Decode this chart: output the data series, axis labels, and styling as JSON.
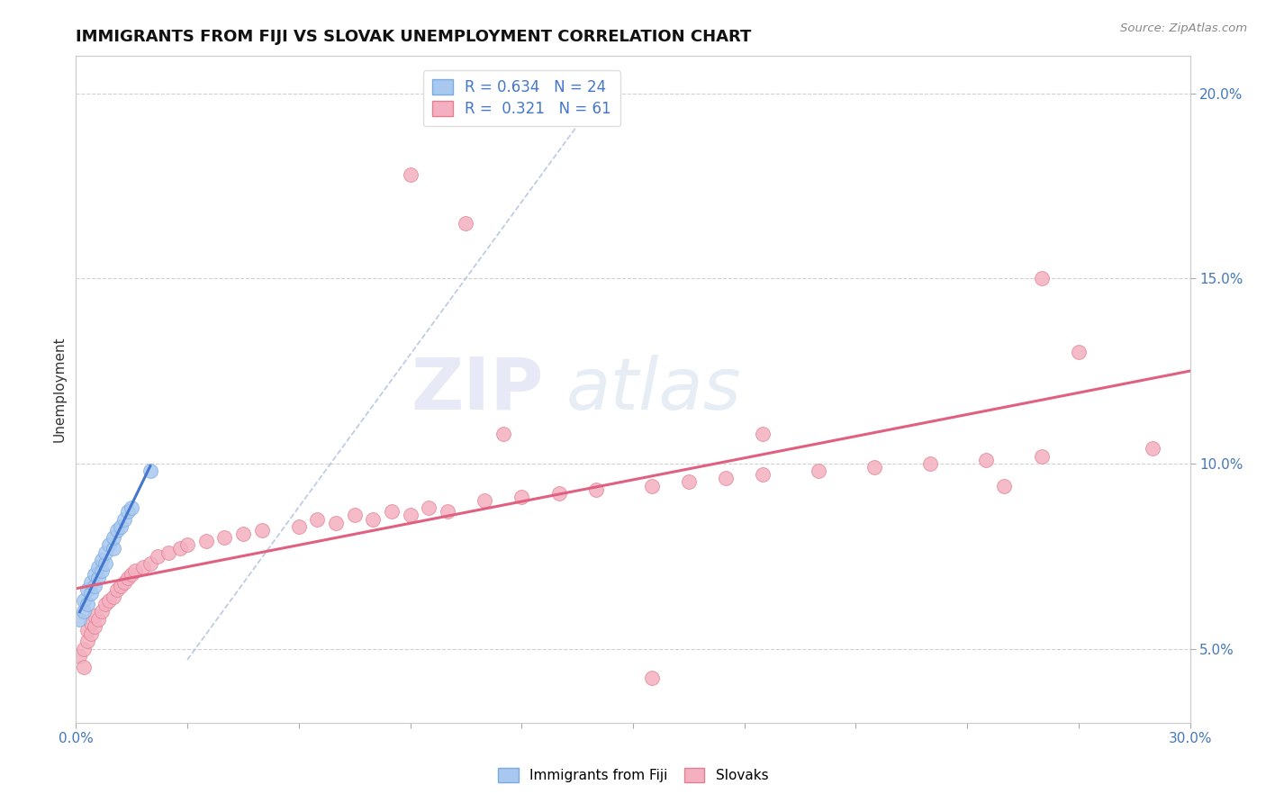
{
  "title": "IMMIGRANTS FROM FIJI VS SLOVAK UNEMPLOYMENT CORRELATION CHART",
  "source_text": "Source: ZipAtlas.com",
  "ylabel": "Unemployment",
  "xlim": [
    0.0,
    0.3
  ],
  "ylim": [
    0.03,
    0.21
  ],
  "xtick_positions": [
    0.0,
    0.03,
    0.06,
    0.09,
    0.12,
    0.15,
    0.18,
    0.21,
    0.24,
    0.27,
    0.3
  ],
  "xticklabels": [
    "0.0%",
    "",
    "",
    "",
    "",
    "",
    "",
    "",
    "",
    "",
    "30.0%"
  ],
  "ytick_positions": [
    0.05,
    0.1,
    0.15,
    0.2
  ],
  "yticklabels_right": [
    "5.0%",
    "10.0%",
    "15.0%",
    "20.0%"
  ],
  "bg_color": "#ffffff",
  "plot_bg_color": "#ffffff",
  "grid_color": "#cccccc",
  "fiji_color": "#a8c8f0",
  "fiji_edge_color": "#7aabdc",
  "slovak_color": "#f4b0c0",
  "slovak_edge_color": "#e08090",
  "fiji_line_color": "#4477cc",
  "slovak_line_color": "#e06080",
  "ref_line_color": "#aabbdd",
  "legend_fiji_R": "0.634",
  "legend_fiji_N": "24",
  "legend_slovak_R": "0.321",
  "legend_slovak_N": "61",
  "legend_fiji_label": "Immigrants from Fiji",
  "legend_slovak_label": "Slovaks",
  "fiji_x": [
    0.001,
    0.002,
    0.002,
    0.003,
    0.003,
    0.004,
    0.004,
    0.005,
    0.005,
    0.006,
    0.006,
    0.007,
    0.007,
    0.008,
    0.008,
    0.009,
    0.01,
    0.01,
    0.011,
    0.012,
    0.013,
    0.014,
    0.015,
    0.02
  ],
  "fiji_y": [
    0.058,
    0.06,
    0.063,
    0.062,
    0.066,
    0.065,
    0.068,
    0.067,
    0.07,
    0.069,
    0.072,
    0.071,
    0.074,
    0.073,
    0.076,
    0.078,
    0.077,
    0.08,
    0.082,
    0.083,
    0.085,
    0.087,
    0.088,
    0.098
  ],
  "slovak_x": [
    0.001,
    0.002,
    0.002,
    0.003,
    0.003,
    0.004,
    0.004,
    0.005,
    0.005,
    0.006,
    0.007,
    0.008,
    0.009,
    0.01,
    0.011,
    0.012,
    0.013,
    0.014,
    0.015,
    0.016,
    0.018,
    0.02,
    0.022,
    0.025,
    0.028,
    0.03,
    0.035,
    0.04,
    0.045,
    0.05,
    0.06,
    0.065,
    0.07,
    0.075,
    0.08,
    0.085,
    0.09,
    0.095,
    0.1,
    0.11,
    0.115,
    0.12,
    0.13,
    0.14,
    0.155,
    0.165,
    0.175,
    0.185,
    0.2,
    0.215,
    0.23,
    0.245,
    0.26,
    0.09,
    0.105,
    0.185,
    0.25,
    0.27,
    0.26,
    0.29,
    0.155
  ],
  "slovak_y": [
    0.048,
    0.045,
    0.05,
    0.052,
    0.055,
    0.054,
    0.057,
    0.056,
    0.059,
    0.058,
    0.06,
    0.062,
    0.063,
    0.064,
    0.066,
    0.067,
    0.068,
    0.069,
    0.07,
    0.071,
    0.072,
    0.073,
    0.075,
    0.076,
    0.077,
    0.078,
    0.079,
    0.08,
    0.081,
    0.082,
    0.083,
    0.085,
    0.084,
    0.086,
    0.085,
    0.087,
    0.086,
    0.088,
    0.087,
    0.09,
    0.108,
    0.091,
    0.092,
    0.093,
    0.094,
    0.095,
    0.096,
    0.097,
    0.098,
    0.099,
    0.1,
    0.101,
    0.102,
    0.178,
    0.165,
    0.108,
    0.094,
    0.13,
    0.15,
    0.104,
    0.042
  ],
  "watermark_zip": "ZIP",
  "watermark_atlas": "atlas",
  "title_fontsize": 13,
  "axis_label_fontsize": 11,
  "tick_fontsize": 11,
  "legend_fontsize": 12
}
